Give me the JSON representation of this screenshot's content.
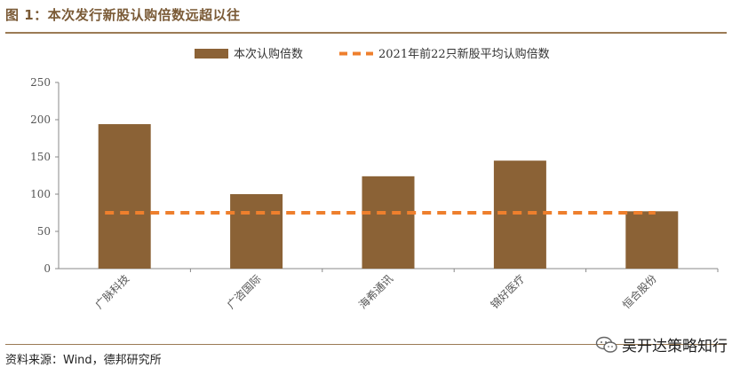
{
  "figure_title": "图 1：本次发行新股认购倍数远超以往",
  "source_note": "资料来源：Wind，德邦研究所",
  "watermark": "吴开达策略知行",
  "colors": {
    "bar": "#8b6236",
    "dash": "#ee7f2d",
    "title": "#7a5a36",
    "rule": "#9b7b55"
  },
  "chart_data": {
    "type": "bar",
    "categories": [
      "广脉科技",
      "广咨国际",
      "海希通讯",
      "锦好医疗",
      "恒合股份"
    ],
    "series": [
      {
        "name": "本次认购倍数",
        "type": "bar",
        "values": [
          194,
          100,
          124,
          145,
          77
        ]
      },
      {
        "name": "2021年前22只新股平均认购倍数",
        "type": "line-dashed",
        "values": [
          75,
          75,
          75,
          75,
          75
        ]
      }
    ],
    "yticks": [
      0,
      50,
      100,
      150,
      200,
      250
    ],
    "ylim": [
      0,
      250
    ],
    "xlabel": "",
    "ylabel": "",
    "legend_position": "top",
    "grid": false
  }
}
